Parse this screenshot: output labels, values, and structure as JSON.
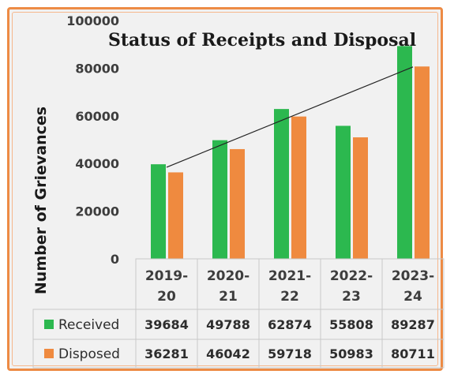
{
  "chart_data": {
    "type": "bar",
    "title": "Status of Receipts and Disposal",
    "ylabel": "Number of Grievances",
    "xlabel": "",
    "ylim": [
      0,
      100000
    ],
    "yticks": [
      "0",
      "20000",
      "40000",
      "60000",
      "80000",
      "100000"
    ],
    "categories": [
      "2019-20",
      "2020-21",
      "2021-22",
      "2022-23",
      "2023-24"
    ],
    "category_lines": [
      [
        "2019-",
        "20"
      ],
      [
        "2020-",
        "21"
      ],
      [
        "2021-",
        "22"
      ],
      [
        "2022-",
        "23"
      ],
      [
        "2023-",
        "24"
      ]
    ],
    "series": [
      {
        "name": "Received",
        "values": [
          39684,
          49788,
          62874,
          55808,
          89287
        ],
        "labels": [
          "39684",
          "49788",
          "62874",
          "55808",
          "89287"
        ],
        "color": "#2cb84f"
      },
      {
        "name": "Disposed",
        "values": [
          36281,
          46042,
          59718,
          50983,
          80711
        ],
        "labels": [
          "36281",
          "46042",
          "59718",
          "50983",
          "80711"
        ],
        "color": "#ef8a3f"
      }
    ],
    "trendline": {
      "series": "Received",
      "color": "#222222"
    },
    "grid": false,
    "legend": "data-table"
  },
  "colors": {
    "frame": "#ed8b45",
    "background": "#f1f1f1",
    "table_border": "#c9c9c9"
  }
}
